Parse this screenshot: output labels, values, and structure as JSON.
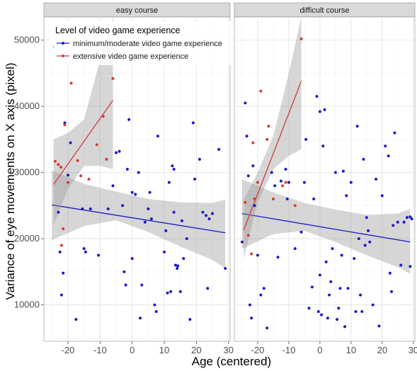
{
  "chart_data": {
    "type": "scatter",
    "title": "",
    "xlabel": "Age (centered)",
    "ylabel": "Variance of eye movements on X axis (pixel)",
    "xlim": [
      -27.5,
      30.5
    ],
    "ylim": [
      4500,
      53500
    ],
    "x_ticks": [
      -20,
      -10,
      0,
      10,
      20,
      30
    ],
    "y_ticks": [
      10000,
      20000,
      30000,
      40000,
      50000
    ],
    "grid": true,
    "legend": {
      "title": "Level of video game experience",
      "placement": "top-left"
    },
    "colors": {
      "minimum": "#1a1ac8",
      "extensive": "#d43a3a",
      "band": "#999999",
      "strip": "#d9d9d9",
      "panel": "#ffffff"
    },
    "panels": [
      {
        "label": "easy course",
        "series": [
          {
            "name": "minimum/moderate video game experience",
            "color": "#1a1ac8",
            "points": [
              [
                -24.5,
                49000
              ],
              [
                -23,
                24000
              ],
              [
                -22.5,
                18000
              ],
              [
                -22,
                11500
              ],
              [
                -21.5,
                14800
              ],
              [
                -21,
                37500
              ],
              [
                -20,
                29600
              ],
              [
                -19.2,
                34500
              ],
              [
                -17.5,
                7800
              ],
              [
                -15.5,
                24500
              ],
              [
                -15,
                18500
              ],
              [
                -14.5,
                18000
              ],
              [
                -13,
                24500
              ],
              [
                -10.5,
                17500
              ],
              [
                -7.5,
                24500
              ],
              [
                -6,
                28000
              ],
              [
                -5,
                33000
              ],
              [
                -4,
                33200
              ],
              [
                -3,
                25000
              ],
              [
                -2.5,
                15000
              ],
              [
                -2,
                13000
              ],
              [
                -1.5,
                30500
              ],
              [
                -1,
                38000
              ],
              [
                0,
                17000
              ],
              [
                0,
                27000
              ],
              [
                1,
                26700
              ],
              [
                2,
                30000
              ],
              [
                2.5,
                8000
              ],
              [
                3,
                13000
              ],
              [
                4,
                22500
              ],
              [
                5,
                24500
              ],
              [
                5.5,
                27000
              ],
              [
                6,
                23000
              ],
              [
                7,
                10000
              ],
              [
                7.5,
                9000
              ],
              [
                8,
                35500
              ],
              [
                10,
                18000
              ],
              [
                10.5,
                21200
              ],
              [
                11,
                11800
              ],
              [
                11.5,
                28500
              ],
              [
                12,
                12000
              ],
              [
                12.5,
                31000
              ],
              [
                13,
                30500
              ],
              [
                13,
                24000
              ],
              [
                13.5,
                16000
              ],
              [
                14,
                15500
              ],
              [
                14.2,
                15900
              ],
              [
                15,
                12000
              ],
              [
                15.5,
                22700
              ],
              [
                16,
                17000
              ],
              [
                17,
                20000
              ],
              [
                18,
                7800
              ],
              [
                19,
                37500
              ],
              [
                19.5,
                29000
              ],
              [
                21,
                32000
              ],
              [
                22,
                24000
              ],
              [
                23,
                23500
              ],
              [
                23.5,
                12500
              ],
              [
                24,
                23000
              ],
              [
                25,
                23800
              ],
              [
                27,
                33500
              ],
              [
                29,
                15500
              ]
            ]
          },
          {
            "name": "extensive video game experience",
            "color": "#d43a3a",
            "points": [
              [
                -24,
                31700
              ],
              [
                -23,
                31200
              ],
              [
                -22.2,
                30800
              ],
              [
                -22,
                19000
              ],
              [
                -21.5,
                21500
              ],
              [
                -21,
                37200
              ],
              [
                -20,
                28500
              ],
              [
                -19,
                43500
              ],
              [
                -17,
                31800
              ],
              [
                -16,
                29500
              ],
              [
                -13.5,
                29000
              ],
              [
                -11,
                34200
              ],
              [
                -9,
                38500
              ],
              [
                -8,
                32000
              ],
              [
                -6,
                44200
              ]
            ]
          }
        ],
        "fits": [
          {
            "series": "minimum/moderate video game experience",
            "x": [
              -25,
              29
            ],
            "y": [
              25100,
              20900
            ],
            "band_x": [
              -25,
              -15,
              -5,
              5,
              15,
              25,
              29
            ],
            "band_lo": [
              19800,
              21900,
              22800,
              21000,
              18800,
              16800,
              15500
            ],
            "band_hi": [
              30300,
              28300,
              27100,
              26000,
              25500,
              25400,
              25900
            ]
          },
          {
            "series": "extensive video game experience",
            "x": [
              -24.5,
              -6
            ],
            "y": [
              28200,
              40900
            ],
            "band_x": [
              -24.5,
              -20,
              -15,
              -10,
              -6
            ],
            "band_lo": [
              22000,
              27500,
              31000,
              31000,
              30500
            ],
            "band_hi": [
              35000,
              36000,
              38000,
              47000,
              53500
            ]
          }
        ]
      },
      {
        "label": "difficult course",
        "series": [
          {
            "name": "minimum/moderate video game experience",
            "color": "#1a1ac8",
            "points": [
              [
                -25,
                19500
              ],
              [
                -24,
                40500
              ],
              [
                -23.5,
                35500
              ],
              [
                -23,
                29500
              ],
              [
                -22.5,
                10000
              ],
              [
                -22,
                8000
              ],
              [
                -21.5,
                31000
              ],
              [
                -21,
                25000
              ],
              [
                -20,
                17500
              ],
              [
                -19,
                11500
              ],
              [
                -18,
                12500
              ],
              [
                -17,
                6500
              ],
              [
                -15.5,
                30000
              ],
              [
                -14.5,
                28000
              ],
              [
                -13.5,
                17200
              ],
              [
                -12.5,
                28700
              ],
              [
                -11,
                30500
              ],
              [
                -10.5,
                26000
              ],
              [
                -10,
                28500
              ],
              [
                -8,
                18500
              ],
              [
                -6,
                21000
              ],
              [
                -5,
                28500
              ],
              [
                -4.5,
                35000
              ],
              [
                -3.5,
                9500
              ],
              [
                -2.5,
                12700
              ],
              [
                -2,
                26000
              ],
              [
                -1,
                41500
              ],
              [
                -0.5,
                9000
              ],
              [
                0,
                39200
              ],
              [
                0,
                14500
              ],
              [
                0.5,
                8500
              ],
              [
                1,
                34000
              ],
              [
                1.5,
                39500
              ],
              [
                2,
                16500
              ],
              [
                2.5,
                8000
              ],
              [
                3,
                11500
              ],
              [
                3.5,
                13500
              ],
              [
                4,
                18500
              ],
              [
                5,
                30000
              ],
              [
                5.5,
                7800
              ],
              [
                6,
                9500
              ],
              [
                6.5,
                12500
              ],
              [
                7,
                17500
              ],
              [
                7.5,
                30200
              ],
              [
                8,
                6700
              ],
              [
                8.5,
                26500
              ],
              [
                9,
                12500
              ],
              [
                10,
                28500
              ],
              [
                11,
                17000
              ],
              [
                11.5,
                9000
              ],
              [
                12,
                37000
              ],
              [
                12.5,
                20000
              ],
              [
                13,
                11500
              ],
              [
                13.5,
                9000
              ],
              [
                14,
                32000
              ],
              [
                14.5,
                19000
              ],
              [
                15,
                23200
              ],
              [
                15.5,
                21200
              ],
              [
                16,
                19500
              ],
              [
                17,
                10000
              ],
              [
                18,
                29000
              ],
              [
                19,
                6800
              ],
              [
                20,
                26500
              ],
              [
                21,
                34000
              ],
              [
                22,
                32500
              ],
              [
                22.5,
                14800
              ],
              [
                23,
                12000
              ],
              [
                23.5,
                22000
              ],
              [
                24,
                36000
              ],
              [
                25,
                22500
              ],
              [
                26,
                16000
              ],
              [
                27,
                22500
              ],
              [
                28,
                23200
              ],
              [
                29,
                23300
              ],
              [
                29,
                15800
              ],
              [
                29.5,
                23000
              ]
            ]
          },
          {
            "name": "extensive video game experience",
            "color": "#d43a3a",
            "points": [
              [
                -24,
                25500
              ],
              [
                -23,
                20500
              ],
              [
                -22,
                17700
              ],
              [
                -21.5,
                34500
              ],
              [
                -21,
                26000
              ],
              [
                -20,
                28500
              ],
              [
                -19,
                42300
              ],
              [
                -17,
                35000
              ],
              [
                -16.5,
                37000
              ],
              [
                -15,
                26000
              ],
              [
                -12,
                28000
              ],
              [
                -11,
                28500
              ],
              [
                -8,
                25000
              ],
              [
                -6,
                50200
              ]
            ]
          }
        ],
        "fits": [
          {
            "series": "minimum/moderate video game experience",
            "x": [
              -25,
              29
            ],
            "y": [
              23800,
              19500
            ],
            "band_x": [
              -25,
              -15,
              -5,
              5,
              15,
              25,
              29
            ],
            "band_lo": [
              18500,
              20700,
              21200,
              19500,
              17500,
              15700,
              14700
            ],
            "band_hi": [
              29000,
              27000,
              25400,
              24400,
              23600,
              23800,
              24500
            ]
          },
          {
            "series": "extensive video game experience",
            "x": [
              -24.5,
              -6
            ],
            "y": [
              21300,
              43800
            ],
            "band_x": [
              -24.5,
              -20,
              -15,
              -10,
              -6
            ],
            "band_lo": [
              17000,
              25500,
              30500,
              32500,
              33500
            ],
            "band_hi": [
              25900,
              30000,
              35500,
              45000,
              53500
            ]
          }
        ]
      }
    ]
  }
}
